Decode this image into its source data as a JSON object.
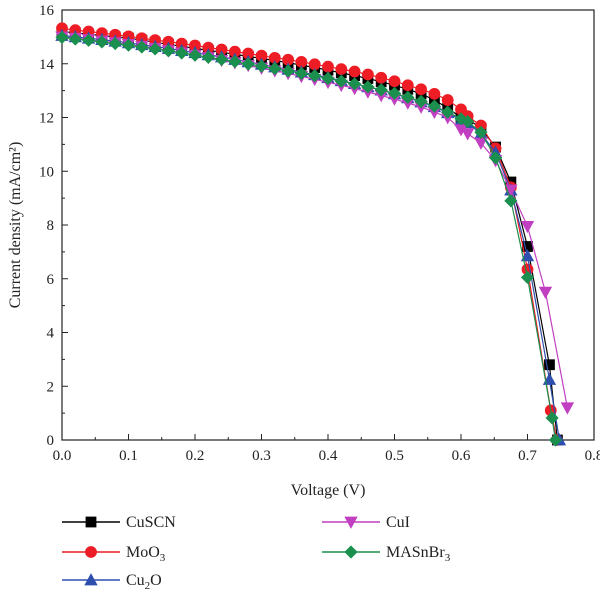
{
  "chart_data": {
    "type": "line",
    "title": "",
    "xlabel": "Voltage (V)",
    "ylabel": "Current density (mA/cm²)",
    "xlim": [
      0.0,
      0.8
    ],
    "ylim": [
      0,
      16
    ],
    "xticks": [
      "0.0",
      "0.1",
      "0.2",
      "0.3",
      "0.4",
      "0.5",
      "0.6",
      "0.7",
      "0.8"
    ],
    "yticks": [
      "0",
      "2",
      "4",
      "6",
      "8",
      "10",
      "12",
      "14",
      "16"
    ],
    "grid": false,
    "legend_placement": "bottom",
    "series": [
      {
        "name": "CuSCN",
        "sub": "",
        "sub_suffix": "",
        "color": "#000000",
        "marker": "square",
        "x": [
          0.0,
          0.02,
          0.04,
          0.06,
          0.08,
          0.1,
          0.12,
          0.14,
          0.16,
          0.18,
          0.2,
          0.22,
          0.24,
          0.26,
          0.28,
          0.3,
          0.32,
          0.34,
          0.36,
          0.38,
          0.4,
          0.42,
          0.44,
          0.46,
          0.48,
          0.5,
          0.52,
          0.54,
          0.56,
          0.58,
          0.6,
          0.61,
          0.63,
          0.652,
          0.675,
          0.7,
          0.733,
          0.745
        ],
        "y": [
          15.2,
          15.15,
          15.1,
          15.05,
          15.0,
          14.95,
          14.88,
          14.8,
          14.72,
          14.65,
          14.57,
          14.5,
          14.43,
          14.35,
          14.27,
          14.2,
          14.12,
          14.04,
          13.95,
          13.86,
          13.76,
          13.66,
          13.56,
          13.45,
          13.33,
          13.2,
          13.05,
          12.88,
          12.65,
          12.35,
          12.0,
          11.95,
          11.6,
          10.9,
          9.6,
          7.2,
          2.8,
          0.0
        ]
      },
      {
        "name": "MoO",
        "sub": "3",
        "sub_suffix": "",
        "color": "#ee1c25",
        "marker": "circle",
        "x": [
          0.0,
          0.02,
          0.04,
          0.06,
          0.08,
          0.1,
          0.12,
          0.14,
          0.16,
          0.18,
          0.2,
          0.22,
          0.24,
          0.26,
          0.28,
          0.3,
          0.32,
          0.34,
          0.36,
          0.38,
          0.4,
          0.42,
          0.44,
          0.46,
          0.48,
          0.5,
          0.52,
          0.54,
          0.56,
          0.58,
          0.6,
          0.61,
          0.63,
          0.652,
          0.675,
          0.7,
          0.735,
          0.744
        ],
        "y": [
          15.32,
          15.25,
          15.2,
          15.14,
          15.08,
          15.02,
          14.95,
          14.88,
          14.82,
          14.75,
          14.68,
          14.6,
          14.53,
          14.45,
          14.38,
          14.3,
          14.22,
          14.15,
          14.07,
          13.98,
          13.89,
          13.8,
          13.71,
          13.6,
          13.48,
          13.35,
          13.2,
          13.05,
          12.88,
          12.65,
          12.3,
          12.05,
          11.7,
          10.85,
          9.4,
          6.35,
          1.1,
          0.0
        ]
      },
      {
        "name": "Cu",
        "sub": "2",
        "sub_suffix": "O",
        "color": "#2e4fad",
        "marker": "triangle-up",
        "x": [
          0.0,
          0.02,
          0.04,
          0.06,
          0.08,
          0.1,
          0.12,
          0.14,
          0.16,
          0.18,
          0.2,
          0.22,
          0.24,
          0.26,
          0.28,
          0.3,
          0.32,
          0.34,
          0.36,
          0.38,
          0.4,
          0.42,
          0.44,
          0.46,
          0.48,
          0.5,
          0.52,
          0.54,
          0.56,
          0.58,
          0.6,
          0.61,
          0.63,
          0.652,
          0.675,
          0.7,
          0.733,
          0.748
        ],
        "y": [
          15.05,
          15.0,
          14.95,
          14.9,
          14.84,
          14.78,
          14.71,
          14.64,
          14.57,
          14.49,
          14.41,
          14.33,
          14.25,
          14.16,
          14.07,
          13.98,
          13.88,
          13.79,
          13.69,
          13.59,
          13.48,
          13.37,
          13.26,
          13.14,
          13.02,
          12.88,
          12.73,
          12.58,
          12.4,
          12.18,
          11.9,
          11.8,
          11.4,
          10.7,
          9.3,
          6.85,
          2.25,
          0.0
        ]
      },
      {
        "name": "CuI",
        "sub": "",
        "sub_suffix": "",
        "color": "#c13fc1",
        "marker": "triangle-down",
        "x": [
          0.0,
          0.02,
          0.04,
          0.06,
          0.08,
          0.1,
          0.12,
          0.14,
          0.16,
          0.18,
          0.2,
          0.22,
          0.24,
          0.26,
          0.28,
          0.3,
          0.32,
          0.34,
          0.36,
          0.38,
          0.4,
          0.42,
          0.44,
          0.46,
          0.48,
          0.5,
          0.52,
          0.54,
          0.56,
          0.58,
          0.6,
          0.61,
          0.63,
          0.652,
          0.675,
          0.7,
          0.727,
          0.76
        ],
        "y": [
          15.0,
          14.95,
          14.9,
          14.84,
          14.78,
          14.72,
          14.65,
          14.57,
          14.49,
          14.41,
          14.32,
          14.23,
          14.13,
          14.04,
          13.94,
          13.84,
          13.74,
          13.64,
          13.53,
          13.42,
          13.31,
          13.2,
          13.08,
          12.95,
          12.82,
          12.69,
          12.54,
          12.39,
          12.2,
          12.0,
          11.55,
          11.4,
          11.05,
          10.4,
          9.3,
          7.95,
          5.5,
          1.2
        ]
      },
      {
        "name": "MASnBr",
        "sub": "3",
        "sub_suffix": "",
        "color": "#1b8f4e",
        "marker": "diamond",
        "x": [
          0.0,
          0.02,
          0.04,
          0.06,
          0.08,
          0.1,
          0.12,
          0.14,
          0.16,
          0.18,
          0.2,
          0.22,
          0.24,
          0.26,
          0.28,
          0.3,
          0.32,
          0.34,
          0.36,
          0.38,
          0.4,
          0.42,
          0.44,
          0.46,
          0.48,
          0.5,
          0.52,
          0.54,
          0.56,
          0.58,
          0.6,
          0.61,
          0.63,
          0.652,
          0.675,
          0.7,
          0.737,
          0.742
        ],
        "y": [
          14.98,
          14.92,
          14.87,
          14.81,
          14.75,
          14.69,
          14.62,
          14.55,
          14.48,
          14.4,
          14.32,
          14.24,
          14.16,
          14.08,
          13.99,
          13.91,
          13.82,
          13.73,
          13.64,
          13.55,
          13.45,
          13.35,
          13.25,
          13.14,
          13.03,
          12.9,
          12.75,
          12.6,
          12.42,
          12.2,
          11.95,
          11.85,
          11.45,
          10.5,
          8.9,
          6.05,
          0.82,
          0.0
        ]
      }
    ]
  }
}
